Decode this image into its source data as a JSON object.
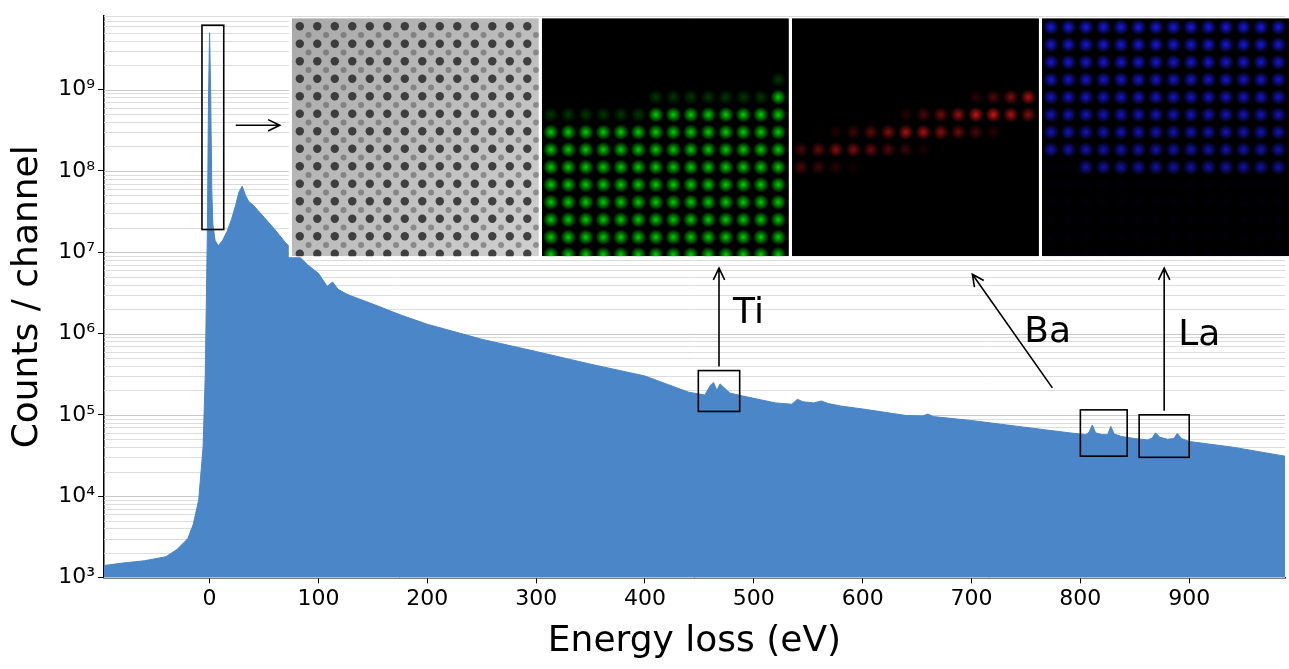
{
  "chart_data": {
    "type": "area",
    "x_label": "Energy loss (eV)",
    "y_label": "Counts / channel",
    "color": "#4a86c8",
    "log": "y",
    "grid": "y",
    "xlim": [
      -97,
      988
    ],
    "ylim": [
      1000,
      8000000000
    ],
    "xticks": [
      0,
      100,
      200,
      300,
      400,
      500,
      600,
      700,
      800,
      900
    ],
    "yticks": [
      {
        "value": 1000,
        "label": "10³"
      },
      {
        "value": 10000,
        "label": "10⁴"
      },
      {
        "value": 100000,
        "label": "10⁵"
      },
      {
        "value": 1000000,
        "label": "10⁶"
      },
      {
        "value": 10000000,
        "label": "10⁷"
      },
      {
        "value": 100000000,
        "label": "10⁸"
      },
      {
        "value": 1000000000,
        "label": "10⁹"
      }
    ],
    "x": [
      -97,
      -80,
      -60,
      -40,
      -30,
      -20,
      -15,
      -10,
      -6,
      -4,
      -2,
      -1,
      0,
      1,
      2,
      3,
      5,
      8,
      12,
      16,
      20,
      24,
      27,
      30,
      33,
      36,
      40,
      45,
      50,
      60,
      70,
      80,
      90,
      100,
      108,
      113,
      118,
      125,
      130,
      150,
      175,
      200,
      250,
      300,
      350,
      400,
      440,
      455,
      460,
      463,
      466,
      469,
      472,
      478,
      490,
      520,
      535,
      540,
      545,
      555,
      562,
      568,
      580,
      600,
      640,
      655,
      660,
      665,
      700,
      750,
      790,
      805,
      808,
      811,
      814,
      820,
      825,
      828,
      831,
      838,
      850,
      862,
      866,
      869,
      873,
      880,
      886,
      889,
      893,
      900,
      940,
      988
    ],
    "values": [
      1400,
      1500,
      1600,
      1800,
      2200,
      3000,
      4500,
      9000,
      40000,
      300000,
      20000000,
      800000000,
      5000000000,
      900000000,
      60000000,
      22000000,
      14000000,
      12000000,
      14000000,
      18000000,
      25000000,
      38000000,
      55000000,
      65000000,
      50000000,
      42000000,
      38000000,
      32000000,
      27000000,
      19000000,
      13000000,
      9500000,
      7000000,
      5500000,
      3800000,
      4300000,
      3500000,
      3100000,
      2900000,
      2300000,
      1700000,
      1300000,
      850000,
      600000,
      420000,
      300000,
      190000,
      175000,
      230000,
      250000,
      200000,
      240000,
      220000,
      185000,
      170000,
      140000,
      135000,
      155000,
      145000,
      140000,
      148000,
      138000,
      128000,
      118000,
      98000,
      97000,
      102000,
      95000,
      85000,
      70000,
      60000,
      57000,
      61000,
      75000,
      60000,
      57000,
      57000,
      72000,
      58000,
      54000,
      51000,
      49000,
      52000,
      60000,
      53000,
      50000,
      51000,
      59000,
      51000,
      47000,
      40000,
      31000
    ],
    "annotations": [
      {
        "x": [
          -7,
          13
        ],
        "y": [
          19000000,
          6200000000
        ],
        "color": "#9a9a9a"
      },
      {
        "text": "Ti",
        "x": [
          449,
          487
        ],
        "y": [
          110000,
          350000
        ],
        "color": "#00e000"
      },
      {
        "text": "Ba",
        "x": [
          800,
          843
        ],
        "y": [
          31000,
          115000
        ],
        "color": "#ff1a1a"
      },
      {
        "text": "La",
        "x": [
          854,
          900
        ],
        "y": [
          30000,
          100000
        ],
        "color": "#1a1aff"
      }
    ]
  }
}
